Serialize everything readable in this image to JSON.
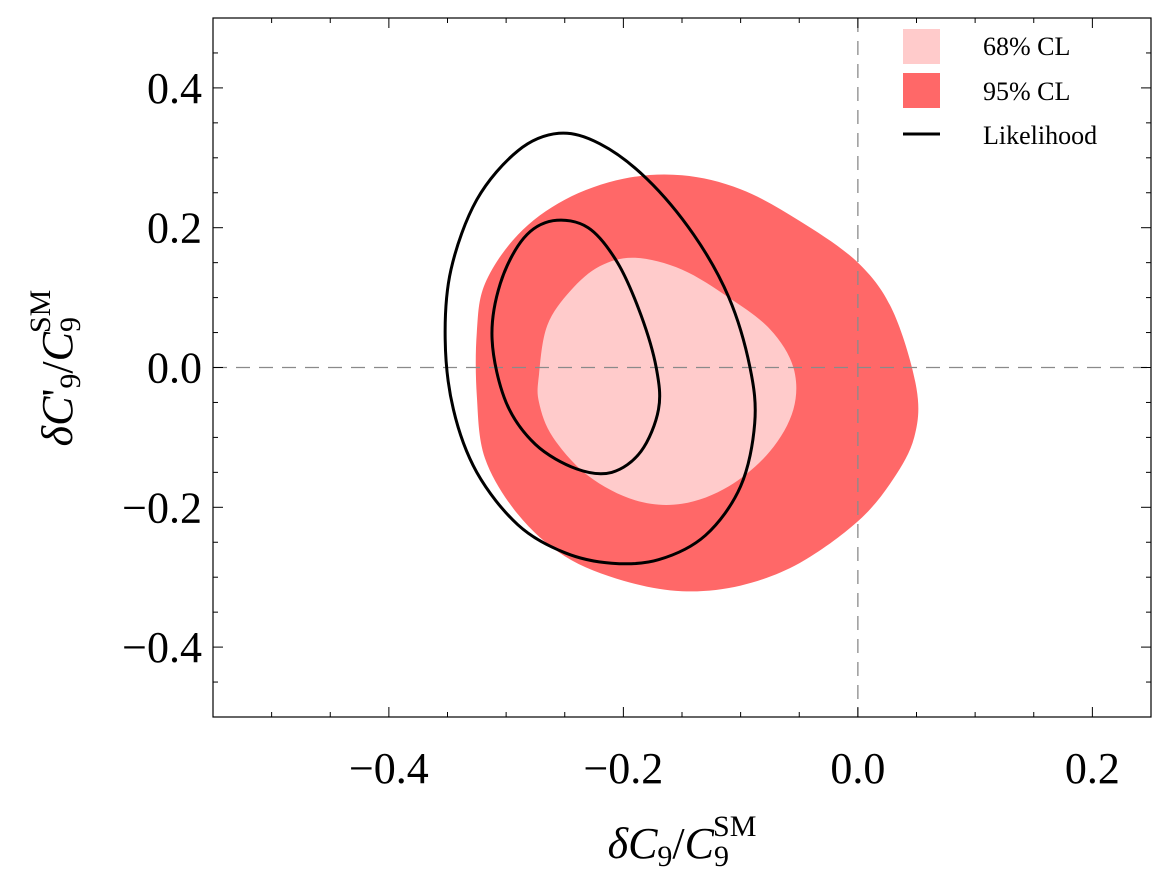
{
  "chart_data": {
    "type": "contour",
    "title": "",
    "xlabel": {
      "prefix": "δ",
      "main": "C",
      "sub": "9",
      "sep": "/",
      "main2": "C",
      "sub2": "9",
      "sup2": "SM"
    },
    "ylabel": {
      "prefix": "δ",
      "main": "C",
      "prime": "'",
      "sub": "9",
      "sep": "/",
      "main2": "C",
      "sub2": "9",
      "sup2": "SM"
    },
    "xlim": [
      -0.55,
      0.25
    ],
    "ylim": [
      -0.5,
      0.5
    ],
    "x_ticks": [
      {
        "value": -0.4,
        "label": "−0.4"
      },
      {
        "value": -0.2,
        "label": "−0.2"
      },
      {
        "value": 0.0,
        "label": "0.0"
      },
      {
        "value": 0.2,
        "label": "0.2"
      }
    ],
    "y_ticks": [
      {
        "value": -0.4,
        "label": "−0.4"
      },
      {
        "value": -0.2,
        "label": "−0.2"
      },
      {
        "value": 0.0,
        "label": "0.0"
      },
      {
        "value": 0.2,
        "label": "0.2"
      },
      {
        "value": 0.4,
        "label": "0.4"
      }
    ],
    "x_minor_step": 0.05,
    "y_minor_step": 0.05,
    "reference_lines": [
      {
        "orientation": "vertical",
        "value": 0.0,
        "style": "dashed"
      },
      {
        "orientation": "horizontal",
        "value": 0.0,
        "style": "dashed"
      }
    ],
    "regions": [
      {
        "name": "95% CL",
        "color": "#ff6868",
        "points": [
          [
            -0.325,
            0.05
          ],
          [
            -0.318,
            0.12
          ],
          [
            -0.29,
            0.19
          ],
          [
            -0.25,
            0.24
          ],
          [
            -0.2,
            0.27
          ],
          [
            -0.15,
            0.275
          ],
          [
            -0.1,
            0.255
          ],
          [
            -0.05,
            0.21
          ],
          [
            0.0,
            0.15
          ],
          [
            0.03,
            0.08
          ],
          [
            0.05,
            -0.03
          ],
          [
            0.048,
            -0.1
          ],
          [
            0.03,
            -0.16
          ],
          [
            0.0,
            -0.22
          ],
          [
            -0.05,
            -0.28
          ],
          [
            -0.1,
            -0.312
          ],
          [
            -0.15,
            -0.32
          ],
          [
            -0.2,
            -0.305
          ],
          [
            -0.25,
            -0.27
          ],
          [
            -0.29,
            -0.21
          ],
          [
            -0.318,
            -0.13
          ],
          [
            -0.325,
            -0.04
          ]
        ]
      },
      {
        "name": "68% CL",
        "color": "#ffcbcb",
        "points": [
          [
            -0.272,
            -0.01
          ],
          [
            -0.265,
            0.06
          ],
          [
            -0.245,
            0.11
          ],
          [
            -0.22,
            0.145
          ],
          [
            -0.19,
            0.157
          ],
          [
            -0.15,
            0.14
          ],
          [
            -0.11,
            0.1
          ],
          [
            -0.075,
            0.055
          ],
          [
            -0.055,
            0.0
          ],
          [
            -0.055,
            -0.06
          ],
          [
            -0.075,
            -0.12
          ],
          [
            -0.11,
            -0.17
          ],
          [
            -0.15,
            -0.195
          ],
          [
            -0.19,
            -0.19
          ],
          [
            -0.23,
            -0.155
          ],
          [
            -0.26,
            -0.1
          ],
          [
            -0.272,
            -0.05
          ]
        ]
      }
    ],
    "contours": [
      {
        "name": "Likelihood outer",
        "color": "#000000",
        "points": [
          [
            -0.352,
            0.04
          ],
          [
            -0.347,
            0.14
          ],
          [
            -0.325,
            0.24
          ],
          [
            -0.29,
            0.31
          ],
          [
            -0.255,
            0.335
          ],
          [
            -0.22,
            0.32
          ],
          [
            -0.18,
            0.27
          ],
          [
            -0.14,
            0.19
          ],
          [
            -0.11,
            0.1
          ],
          [
            -0.092,
            0.0
          ],
          [
            -0.088,
            -0.08
          ],
          [
            -0.1,
            -0.17
          ],
          [
            -0.13,
            -0.24
          ],
          [
            -0.17,
            -0.275
          ],
          [
            -0.21,
            -0.28
          ],
          [
            -0.25,
            -0.265
          ],
          [
            -0.29,
            -0.225
          ],
          [
            -0.325,
            -0.15
          ],
          [
            -0.345,
            -0.06
          ]
        ]
      },
      {
        "name": "Likelihood inner",
        "color": "#000000",
        "points": [
          [
            -0.312,
            0.04
          ],
          [
            -0.305,
            0.12
          ],
          [
            -0.285,
            0.185
          ],
          [
            -0.26,
            0.21
          ],
          [
            -0.23,
            0.2
          ],
          [
            -0.205,
            0.15
          ],
          [
            -0.185,
            0.075
          ],
          [
            -0.172,
            0.0
          ],
          [
            -0.17,
            -0.06
          ],
          [
            -0.185,
            -0.12
          ],
          [
            -0.21,
            -0.15
          ],
          [
            -0.24,
            -0.145
          ],
          [
            -0.275,
            -0.11
          ],
          [
            -0.3,
            -0.05
          ]
        ]
      }
    ],
    "legend": {
      "position": "top-right",
      "entries": [
        {
          "label": "68% CL",
          "kind": "swatch",
          "color": "#ffcbcb"
        },
        {
          "label": "95% CL",
          "kind": "swatch",
          "color": "#ff6868"
        },
        {
          "label": "Likelihood",
          "kind": "line",
          "color": "#000000"
        }
      ]
    }
  }
}
